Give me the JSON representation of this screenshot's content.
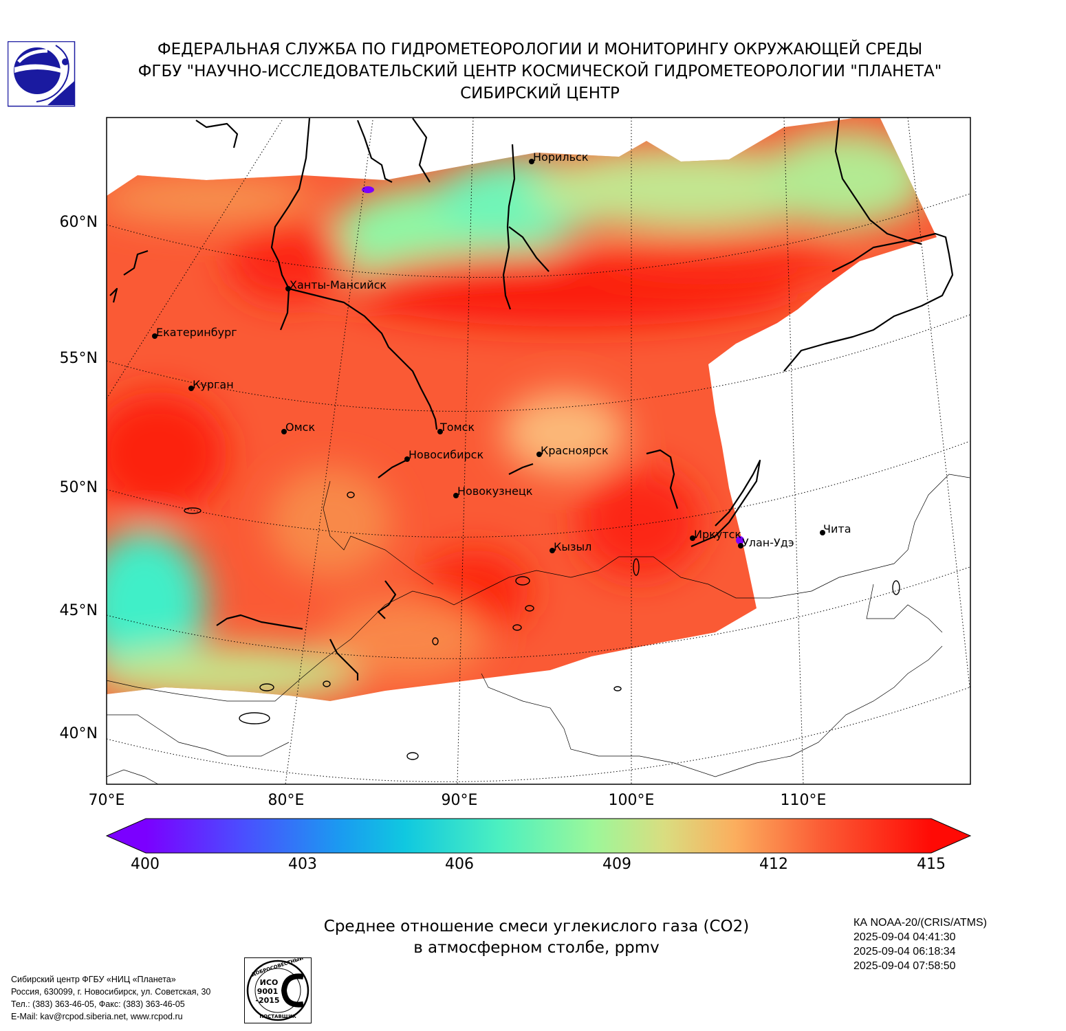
{
  "header": {
    "line1": "ФЕДЕРАЛЬНАЯ СЛУЖБА ПО ГИДРОМЕТЕОРОЛОГИИ И МОНИТОРИНГУ ОКРУЖАЮЩЕЙ СРЕДЫ",
    "line2": "ФГБУ \"НАУЧНО-ИССЛЕДОВАТЕЛЬСКИЙ ЦЕНТР КОСМИЧЕСКОЙ ГИДРОМЕТЕОРОЛОГИИ \"ПЛАНЕТА\"",
    "line3": "СИБИРСКИЙ ЦЕНТР"
  },
  "map": {
    "lat_labels": [
      "60°N",
      "55°N",
      "50°N",
      "45°N",
      "40°N"
    ],
    "lon_labels": [
      "70°E",
      "80°E",
      "90°E",
      "100°E",
      "110°E"
    ],
    "cities": [
      "Норильск",
      "Ханты-Мансийск",
      "Екатеринбург",
      "Курган",
      "Омск",
      "Томск",
      "Новосибирск",
      "Красноярск",
      "Новокузнецк",
      "Кызыл",
      "Иркутск",
      "Улан-Удэ",
      "Чита"
    ],
    "colors": {
      "high": "#ff1a0d",
      "mid": "#fb6a3c",
      "low": "#8df7a8",
      "min": "#7b00ff"
    }
  },
  "colorbar": {
    "ticks": [
      "400",
      "403",
      "406",
      "409",
      "412",
      "415"
    ],
    "min": 400,
    "max": 415
  },
  "caption": {
    "line1": "Среднее отношение смеси углекислого газа (CO2)",
    "line2": "в атмосферном столбе, ppmv"
  },
  "satellite": {
    "name": "КА NOAA-20/(CRIS/ATMS)",
    "times": [
      "2025-09-04 04:41:30",
      "2025-09-04 06:18:34",
      "2025-09-04 07:58:50"
    ]
  },
  "footer": {
    "line1": "Сибирский центр ФГБУ «НИЦ «Планета»",
    "line2": "Россия, 630099, г. Новосибирск, ул. Советская, 30",
    "line3": "Тел.: (383) 363-46-05, Факс: (383) 363-46-05",
    "line4": "E-Mail: kav@rcpod.siberia.net, www.rcpod.ru"
  },
  "iso": {
    "top_text": "ДОБРОСОВЕСТНЫЙ",
    "bottom_text": "ПОСТАВЩИК",
    "line1": "ИСО",
    "line2": "9001",
    "line3": "-2015"
  }
}
